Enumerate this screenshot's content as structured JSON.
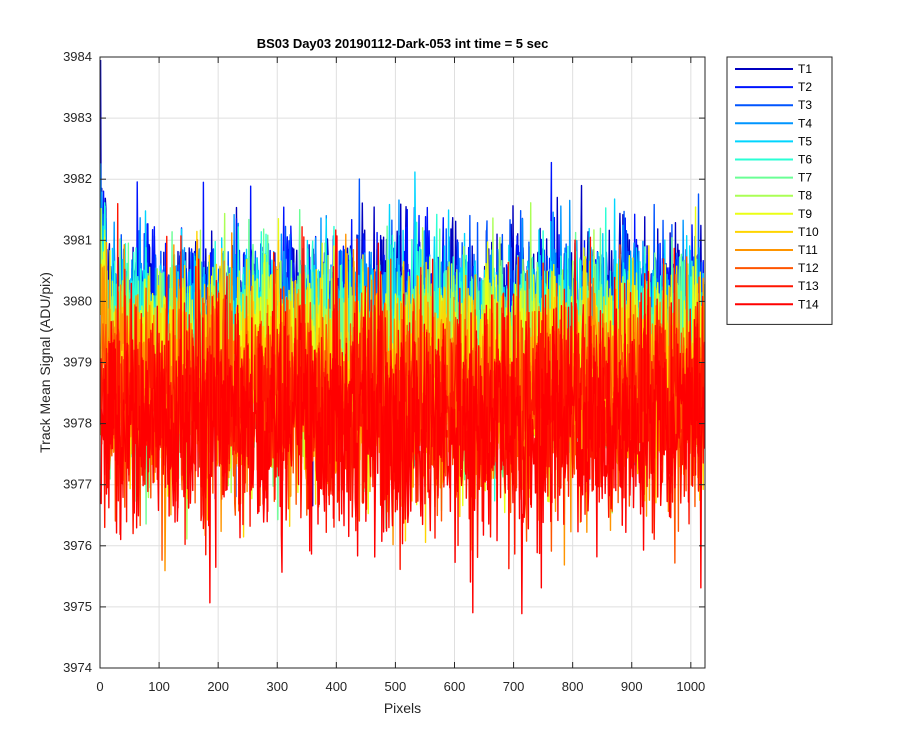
{
  "chart_data": {
    "type": "line",
    "title": "BS03 Day03 20190112-Dark-053 int time = 5 sec",
    "xlabel": "Pixels",
    "ylabel": "Track Mean Signal (ADU/pix)",
    "xlim": [
      0,
      1024
    ],
    "ylim": [
      3974,
      3984
    ],
    "xticks": [
      0,
      100,
      200,
      300,
      400,
      500,
      600,
      700,
      800,
      900,
      1000
    ],
    "yticks": [
      3974,
      3975,
      3976,
      3977,
      3978,
      3979,
      3980,
      3981,
      3982,
      3983,
      3984
    ],
    "grid": true,
    "legend_position": "outside-top-right",
    "samples": 1024,
    "series": [
      {
        "name": "T1",
        "color": "#0000bf",
        "mean": 3979.8,
        "noise": 0.75
      },
      {
        "name": "T2",
        "color": "#0014ff",
        "mean": 3979.7,
        "noise": 0.75
      },
      {
        "name": "T3",
        "color": "#0055ff",
        "mean": 3979.6,
        "noise": 0.75
      },
      {
        "name": "T4",
        "color": "#0095ff",
        "mean": 3979.5,
        "noise": 0.75
      },
      {
        "name": "T5",
        "color": "#00d5ff",
        "mean": 3979.4,
        "noise": 0.75
      },
      {
        "name": "T6",
        "color": "#2affd5",
        "mean": 3979.3,
        "noise": 0.75
      },
      {
        "name": "T7",
        "color": "#6aff95",
        "mean": 3979.1,
        "noise": 0.8
      },
      {
        "name": "T8",
        "color": "#aaff55",
        "mean": 3979.0,
        "noise": 0.8
      },
      {
        "name": "T9",
        "color": "#eaff15",
        "mean": 3978.9,
        "noise": 0.8
      },
      {
        "name": "T10",
        "color": "#ffd500",
        "mean": 3978.8,
        "noise": 0.85
      },
      {
        "name": "T11",
        "color": "#ff9500",
        "mean": 3978.6,
        "noise": 0.85
      },
      {
        "name": "T12",
        "color": "#ff5500",
        "mean": 3978.4,
        "noise": 0.9
      },
      {
        "name": "T13",
        "color": "#ff1500",
        "mean": 3978.2,
        "noise": 0.9
      },
      {
        "name": "T14",
        "color": "#ff0000",
        "mean": 3978.0,
        "noise": 0.95
      }
    ]
  }
}
